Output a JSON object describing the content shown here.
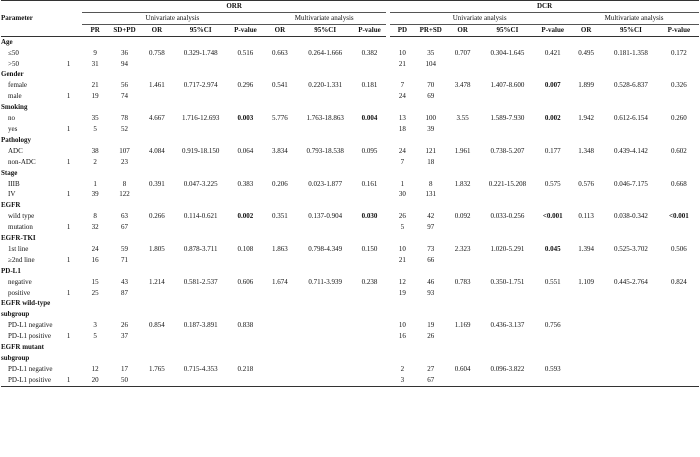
{
  "groups": [
    {
      "label": "ORR",
      "analyses": [
        "Univariate analysis",
        "Multivariate analysis"
      ],
      "cols": [
        "PR",
        "SD+PD",
        "OR",
        "95%CI",
        "P-value",
        "OR",
        "95%CI",
        "P-value"
      ]
    },
    {
      "label": "DCR",
      "analyses": [
        "Univariate analysis",
        "Multivariate analysis"
      ],
      "cols": [
        "PD",
        "PR+SD",
        "OR",
        "95%CI",
        "P-value",
        "OR",
        "95%CI",
        "P-value"
      ]
    }
  ],
  "parameter_header": "Parameter",
  "rows": [
    {
      "type": "section",
      "label": "Age"
    },
    {
      "type": "row",
      "label": "≤50",
      "ref": "",
      "orr": [
        "9",
        "36",
        "0.758",
        "0.329-1.748",
        "0.516",
        "0.663",
        "0.264-1.666",
        "0.382"
      ],
      "dcr": [
        "10",
        "35",
        "0.707",
        "0.304-1.645",
        "0.421",
        "0.495",
        "0.181-1.358",
        "0.172"
      ],
      "bold": []
    },
    {
      "type": "row",
      "label": ">50",
      "ref": "1",
      "orr": [
        "31",
        "94",
        "",
        "",
        "",
        "",
        "",
        ""
      ],
      "dcr": [
        "21",
        "104",
        "",
        "",
        "",
        "",
        "",
        ""
      ],
      "bold": []
    },
    {
      "type": "section",
      "label": "Gender"
    },
    {
      "type": "row",
      "label": "female",
      "ref": "",
      "orr": [
        "21",
        "56",
        "1.461",
        "0.717-2.974",
        "0.296",
        "0.541",
        "0.220-1.331",
        "0.181"
      ],
      "dcr": [
        "7",
        "70",
        "3.478",
        "1.407-8.600",
        "0.007",
        "1.899",
        "0.528-6.837",
        "0.326"
      ],
      "bold": [
        "dcr4"
      ]
    },
    {
      "type": "row",
      "label": "male",
      "ref": "1",
      "orr": [
        "19",
        "74",
        "",
        "",
        "",
        "",
        "",
        ""
      ],
      "dcr": [
        "24",
        "69",
        "",
        "",
        "",
        "",
        "",
        ""
      ],
      "bold": []
    },
    {
      "type": "section",
      "label": "Smoking"
    },
    {
      "type": "row",
      "label": "no",
      "ref": "",
      "orr": [
        "35",
        "78",
        "4.667",
        "1.716-12.693",
        "0.003",
        "5.776",
        "1.763-18.863",
        "0.004"
      ],
      "dcr": [
        "13",
        "100",
        "3.55",
        "1.589-7.930",
        "0.002",
        "1.942",
        "0.612-6.154",
        "0.260"
      ],
      "bold": [
        "orr4",
        "orr7",
        "dcr4"
      ]
    },
    {
      "type": "row",
      "label": "yes",
      "ref": "1",
      "orr": [
        "5",
        "52",
        "",
        "",
        "",
        "",
        "",
        ""
      ],
      "dcr": [
        "18",
        "39",
        "",
        "",
        "",
        "",
        "",
        ""
      ],
      "bold": []
    },
    {
      "type": "section",
      "label": "Pathology"
    },
    {
      "type": "row",
      "label": "ADC",
      "ref": "",
      "orr": [
        "38",
        "107",
        "4.084",
        "0.919-18.150",
        "0.064",
        "3.834",
        "0.793-18.538",
        "0.095"
      ],
      "dcr": [
        "24",
        "121",
        "1.961",
        "0.738-5.207",
        "0.177",
        "1.348",
        "0.439-4.142",
        "0.602"
      ],
      "bold": []
    },
    {
      "type": "row",
      "label": "non-ADC",
      "ref": "1",
      "orr": [
        "2",
        "23",
        "",
        "",
        "",
        "",
        "",
        ""
      ],
      "dcr": [
        "7",
        "18",
        "",
        "",
        "",
        "",
        "",
        ""
      ],
      "bold": []
    },
    {
      "type": "section",
      "label": "Stage"
    },
    {
      "type": "row",
      "label": "IIIB",
      "ref": "",
      "orr": [
        "1",
        "8",
        "0.391",
        "0.047-3.225",
        "0.383",
        "0.206",
        "0.023-1.877",
        "0.161"
      ],
      "dcr": [
        "1",
        "8",
        "1.832",
        "0.221-15.208",
        "0.575",
        "0.576",
        "0.046-7.175",
        "0.668"
      ],
      "bold": []
    },
    {
      "type": "row",
      "label": "IV",
      "ref": "1",
      "orr": [
        "39",
        "122",
        "",
        "",
        "",
        "",
        "",
        ""
      ],
      "dcr": [
        "30",
        "131",
        "",
        "",
        "",
        "",
        "",
        ""
      ],
      "bold": []
    },
    {
      "type": "section",
      "label": "EGFR"
    },
    {
      "type": "row",
      "label": "wild type",
      "ref": "",
      "orr": [
        "8",
        "63",
        "0.266",
        "0.114-0.621",
        "0.002",
        "0.351",
        "0.137-0.904",
        "0.030"
      ],
      "dcr": [
        "26",
        "42",
        "0.092",
        "0.033-0.256",
        "<0.001",
        "0.113",
        "0.038-0.342",
        "<0.001"
      ],
      "bold": [
        "orr4",
        "orr7",
        "dcr4",
        "dcr7"
      ]
    },
    {
      "type": "row",
      "label": "mutation",
      "ref": "1",
      "orr": [
        "32",
        "67",
        "",
        "",
        "",
        "",
        "",
        ""
      ],
      "dcr": [
        "5",
        "97",
        "",
        "",
        "",
        "",
        "",
        ""
      ],
      "bold": []
    },
    {
      "type": "section",
      "label": "EGFR-TKI"
    },
    {
      "type": "row",
      "label": "1st line",
      "ref": "",
      "orr": [
        "24",
        "59",
        "1.805",
        "0.878-3.711",
        "0.108",
        "1.863",
        "0.798-4.349",
        "0.150"
      ],
      "dcr": [
        "10",
        "73",
        "2.323",
        "1.020-5.291",
        "0.045",
        "1.394",
        "0.525-3.702",
        "0.506"
      ],
      "bold": [
        "dcr4"
      ]
    },
    {
      "type": "row",
      "label": "≥2nd line",
      "ref": "1",
      "orr": [
        "16",
        "71",
        "",
        "",
        "",
        "",
        "",
        ""
      ],
      "dcr": [
        "21",
        "66",
        "",
        "",
        "",
        "",
        "",
        ""
      ],
      "bold": []
    },
    {
      "type": "section",
      "label": "PD-L1"
    },
    {
      "type": "row",
      "label": "negative",
      "ref": "",
      "orr": [
        "15",
        "43",
        "1.214",
        "0.581-2.537",
        "0.606",
        "1.674",
        "0.711-3.939",
        "0.238"
      ],
      "dcr": [
        "12",
        "46",
        "0.783",
        "0.350-1.751",
        "0.551",
        "1.109",
        "0.445-2.764",
        "0.824"
      ],
      "bold": []
    },
    {
      "type": "row",
      "label": "positive",
      "ref": "1",
      "orr": [
        "25",
        "87",
        "",
        "",
        "",
        "",
        "",
        ""
      ],
      "dcr": [
        "19",
        "93",
        "",
        "",
        "",
        "",
        "",
        ""
      ],
      "bold": []
    },
    {
      "type": "section",
      "label": "EGFR wild-type"
    },
    {
      "type": "section",
      "label": "subgroup"
    },
    {
      "type": "row",
      "label": "PD-L1 negative",
      "ref": "",
      "orr": [
        "3",
        "26",
        "0.854",
        "0.187-3.891",
        "0.838",
        "",
        "",
        ""
      ],
      "dcr": [
        "10",
        "19",
        "1.169",
        "0.436-3.137",
        "0.756",
        "",
        "",
        ""
      ],
      "bold": []
    },
    {
      "type": "row",
      "label": "PD-L1 positive",
      "ref": "1",
      "orr": [
        "5",
        "37",
        "",
        "",
        "",
        "",
        "",
        ""
      ],
      "dcr": [
        "16",
        "26",
        "",
        "",
        "",
        "",
        "",
        ""
      ],
      "bold": []
    },
    {
      "type": "section",
      "label": "EGFR mutant"
    },
    {
      "type": "section",
      "label": "subgroup"
    },
    {
      "type": "row",
      "label": "PD-L1 negative",
      "ref": "",
      "orr": [
        "12",
        "17",
        "1.765",
        "0.715-4.353",
        "0.218",
        "",
        "",
        ""
      ],
      "dcr": [
        "2",
        "27",
        "0.604",
        "0.096-3.822",
        "0.593",
        "",
        "",
        ""
      ],
      "bold": []
    },
    {
      "type": "row",
      "label": "PD-L1 positive",
      "ref": "1",
      "orr": [
        "20",
        "50",
        "",
        "",
        "",
        "",
        "",
        ""
      ],
      "dcr": [
        "3",
        "67",
        "",
        "",
        "",
        "",
        "",
        ""
      ],
      "bold": []
    }
  ]
}
